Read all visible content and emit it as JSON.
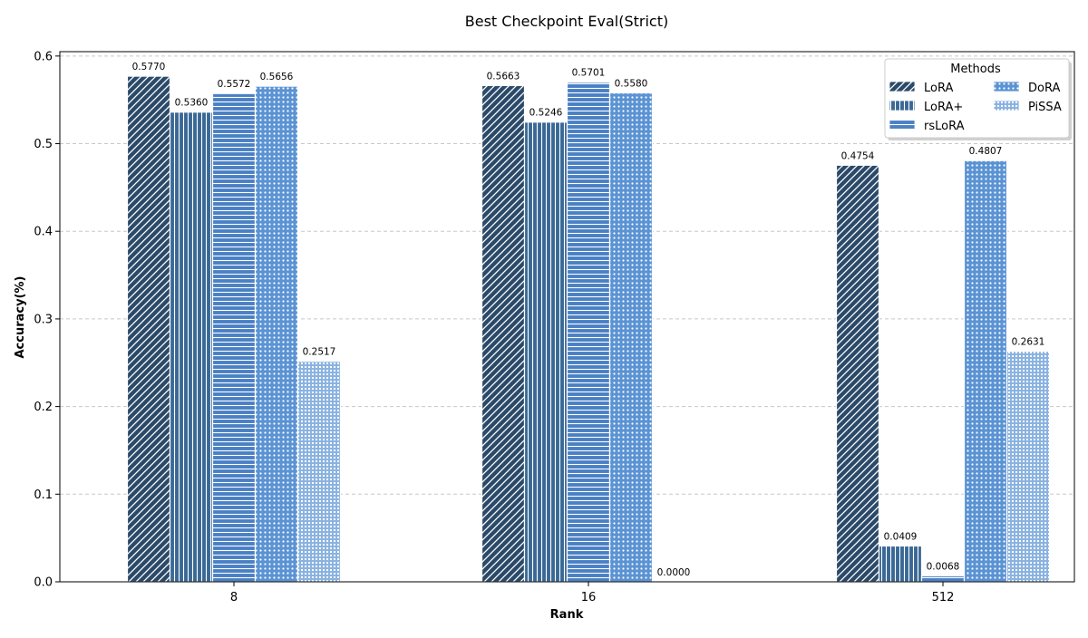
{
  "chart_data": {
    "type": "bar",
    "title": "Best Checkpoint Eval(Strict)",
    "xlabel": "Rank",
    "ylabel": "Accuracy(%)",
    "categories": [
      "8",
      "16",
      "512"
    ],
    "ylim": [
      0,
      0.605
    ],
    "yticks": [
      0.0,
      0.1,
      0.2,
      0.3,
      0.4,
      0.5,
      0.6
    ],
    "ytick_labels": [
      "0.0",
      "0.1",
      "0.2",
      "0.3",
      "0.4",
      "0.5",
      "0.6"
    ],
    "grid": "horizontal dashed",
    "legend": {
      "title": "Methods",
      "placement": "top-right",
      "columns": 2
    },
    "series": [
      {
        "name": "LoRA",
        "values": [
          0.577,
          0.5663,
          0.4754
        ],
        "labels": [
          "0.5770",
          "0.5663",
          "0.4754"
        ],
        "color": "#2b4a6a",
        "hatch": "diagonal"
      },
      {
        "name": "LoRA+",
        "values": [
          0.536,
          0.5246,
          0.0409
        ],
        "labels": [
          "0.5360",
          "0.5246",
          "0.0409"
        ],
        "color": "#3a6895",
        "hatch": "vertical"
      },
      {
        "name": "rsLoRA",
        "values": [
          0.5572,
          0.5701,
          0.0068
        ],
        "labels": [
          "0.5572",
          "0.5701",
          "0.0068"
        ],
        "color": "#4a80c4",
        "hatch": "horizontal"
      },
      {
        "name": "DoRA",
        "values": [
          0.5656,
          0.558,
          0.4807
        ],
        "labels": [
          "0.5656",
          "0.5580",
          "0.4807"
        ],
        "color": "#5b93d3",
        "hatch": "dots"
      },
      {
        "name": "PiSSA",
        "values": [
          0.2517,
          0.0,
          0.2631
        ],
        "labels": [
          "0.2517",
          "0.0000",
          "0.2631"
        ],
        "color": "#8bb3e0",
        "hatch": "grid"
      }
    ]
  }
}
